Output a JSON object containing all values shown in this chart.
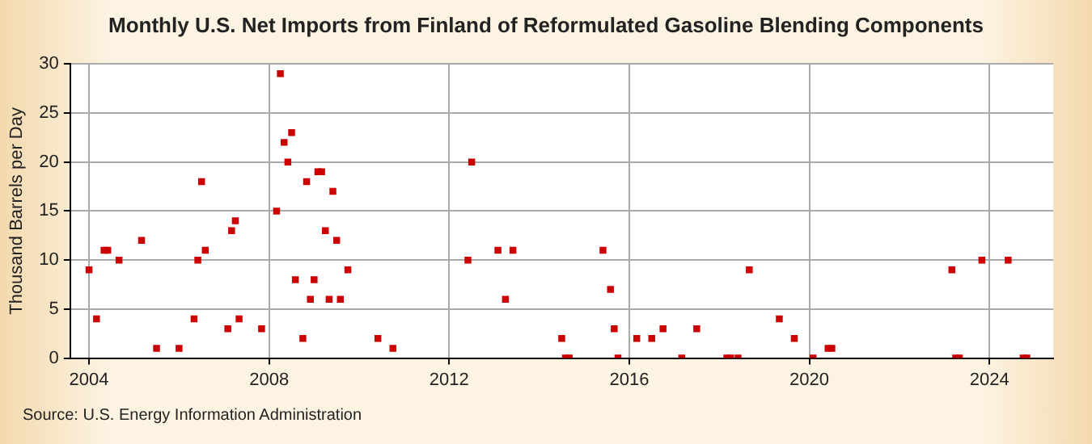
{
  "chart_data": {
    "type": "scatter",
    "title": "Monthly U.S. Net Imports from Finland of Reformulated Gasoline Blending Components",
    "ylabel": "Thousand Barrels per Day",
    "x": [
      "2004-01",
      "2004-03",
      "2004-05",
      "2004-06",
      "2004-09",
      "2005-03",
      "2005-07",
      "2006-01",
      "2006-05",
      "2006-06",
      "2006-07",
      "2006-08",
      "2007-02",
      "2007-03",
      "2007-04",
      "2007-05",
      "2007-11",
      "2008-03",
      "2008-04",
      "2008-05",
      "2008-06",
      "2008-07",
      "2008-08",
      "2008-10",
      "2008-11",
      "2008-12",
      "2009-01",
      "2009-02",
      "2009-03",
      "2009-04",
      "2009-05",
      "2009-06",
      "2009-07",
      "2009-08",
      "2009-10",
      "2010-06",
      "2010-10",
      "2012-06",
      "2012-07",
      "2013-02",
      "2013-04",
      "2013-06",
      "2014-07",
      "2014-08",
      "2014-09",
      "2015-06",
      "2015-08",
      "2015-09",
      "2015-10",
      "2016-03",
      "2016-07",
      "2016-10",
      "2017-03",
      "2017-07",
      "2018-03",
      "2018-04",
      "2018-06",
      "2018-09",
      "2019-05",
      "2019-09",
      "2020-02",
      "2020-06",
      "2020-07",
      "2023-03",
      "2023-04",
      "2023-05",
      "2023-11",
      "2024-06",
      "2024-10",
      "2024-11"
    ],
    "series": [
      {
        "color": "#cc0000",
        "values": [
          9,
          4,
          11,
          11,
          10,
          12,
          1,
          1,
          4,
          10,
          18,
          11,
          3,
          13,
          14,
          4,
          3,
          15,
          29,
          22,
          20,
          23,
          8,
          2,
          18,
          6,
          8,
          19,
          19,
          13,
          6,
          17,
          12,
          6,
          9,
          2,
          1,
          10,
          20,
          11,
          6,
          11,
          2,
          0,
          0,
          11,
          7,
          3,
          0,
          2,
          2,
          3,
          0,
          3,
          0,
          0,
          0,
          9,
          4,
          2,
          0,
          1,
          1,
          9,
          0,
          0,
          10,
          10,
          0,
          0
        ]
      }
    ],
    "xlim": [
      "2003-08",
      "2025-06"
    ],
    "xticks": [
      "2004",
      "2008",
      "2012",
      "2016",
      "2020",
      "2024"
    ],
    "ylim": [
      0,
      30
    ],
    "yticks": [
      0,
      5,
      10,
      15,
      20,
      25,
      30
    ],
    "grid": true,
    "marker": "square",
    "legend": false,
    "annotations": [
      "Source: U.S. Energy Information Administration"
    ]
  }
}
